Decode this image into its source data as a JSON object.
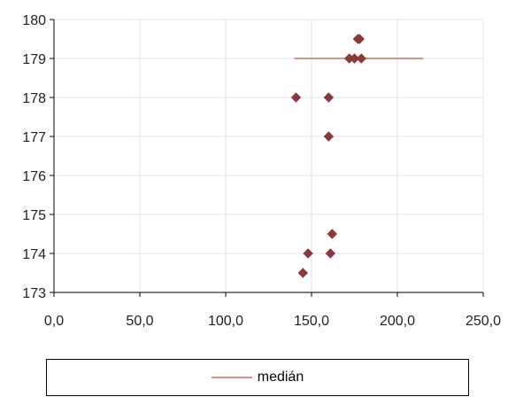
{
  "chart_data": {
    "type": "scatter",
    "title": "",
    "xlabel": "",
    "ylabel": "",
    "xlim": [
      0,
      250
    ],
    "ylim": [
      173,
      180
    ],
    "x_ticks": [
      "0,0",
      "50,0",
      "100,0",
      "150,0",
      "200,0",
      "250,0"
    ],
    "x_tick_values": [
      0,
      50,
      100,
      150,
      200,
      250
    ],
    "y_ticks": [
      "173",
      "174",
      "175",
      "176",
      "177",
      "178",
      "179",
      "180"
    ],
    "y_tick_values": [
      173,
      174,
      175,
      176,
      177,
      178,
      179,
      180
    ],
    "grid": true,
    "series": [
      {
        "type": "scatter",
        "marker": "diamond",
        "color": "#8b3a3a",
        "points": [
          {
            "x": 178,
            "y": 179.5
          },
          {
            "x": 177,
            "y": 179.5
          },
          {
            "x": 172,
            "y": 179
          },
          {
            "x": 175,
            "y": 179
          },
          {
            "x": 179,
            "y": 179
          },
          {
            "x": 141,
            "y": 178
          },
          {
            "x": 160,
            "y": 178
          },
          {
            "x": 160,
            "y": 177
          },
          {
            "x": 162,
            "y": 174.5
          },
          {
            "x": 148,
            "y": 174
          },
          {
            "x": 161,
            "y": 174
          },
          {
            "x": 145,
            "y": 173.5
          }
        ]
      },
      {
        "name": "medián",
        "type": "line",
        "color": "#d98f8a",
        "points": [
          {
            "x": 140,
            "y": 179
          },
          {
            "x": 215,
            "y": 179
          }
        ]
      }
    ],
    "legend": {
      "position": "bottom",
      "entries": [
        "medián"
      ]
    }
  }
}
